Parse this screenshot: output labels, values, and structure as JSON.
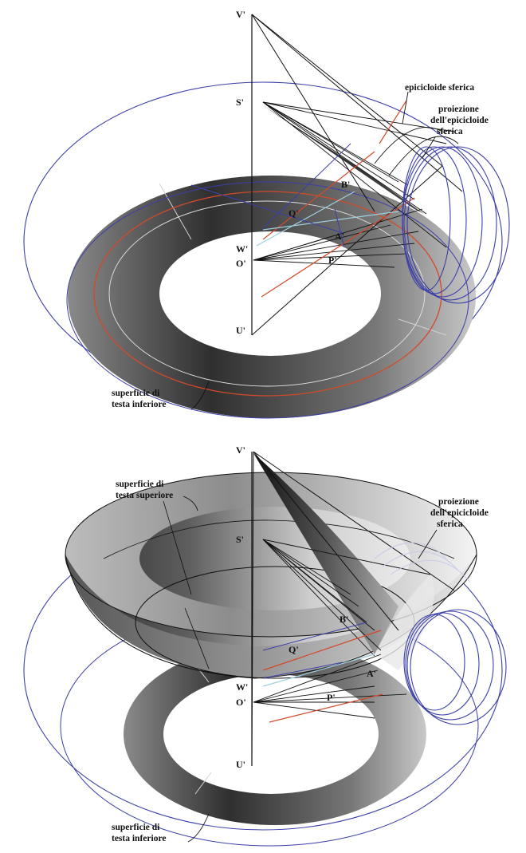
{
  "colors": {
    "construction_line": "#111111",
    "circle_blue": "#3b3fa8",
    "curve_red": "#d24a2a",
    "axis_light": "#9ecfe0",
    "surface_dark": "#3a3a3a",
    "surface_light": "#f2f2f2"
  },
  "top_panel": {
    "points": {
      "V": "V'",
      "S": "S'",
      "B": "B'",
      "Q": "Q'",
      "A": "A'",
      "W": "W'",
      "O": "O'",
      "P": "P'",
      "U": "U'"
    },
    "callouts": {
      "epicycloid_1": "epicicloide sferica",
      "projection_1": "proiezione",
      "projection_2": "dell'epicicloide",
      "projection_3": "sferica",
      "lower_head_1": "superficie di",
      "lower_head_2": "testa inferiore"
    }
  },
  "bottom_panel": {
    "points": {
      "V": "V'",
      "S": "S'",
      "B": "B'",
      "Q": "Q'",
      "A": "A'",
      "W": "W'",
      "O": "O'",
      "P": "P'",
      "U": "U'"
    },
    "callouts": {
      "upper_head_1": "superficie di",
      "upper_head_2": "testa superiore",
      "projection_1": "proiezione",
      "projection_2": "dell'epicicloide",
      "projection_3": "sferica",
      "lower_head_1": "superficie di",
      "lower_head_2": "testa inferiore"
    }
  }
}
